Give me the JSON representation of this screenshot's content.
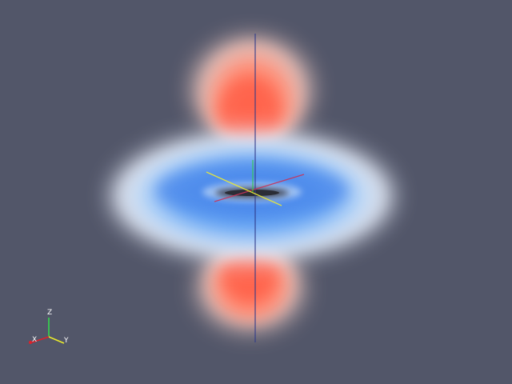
{
  "scene": {
    "background_color": "#525669",
    "lobe_color": "#ff7a62",
    "torus_color": "#5d9dee"
  },
  "orientation_axes": {
    "z_label": "Z",
    "x_label": "X",
    "y_label": "Y",
    "z_color": "#33e24b",
    "x_color": "#e0202a",
    "y_color": "#ecec2a"
  },
  "center_axes": {
    "z_color": "#2f3a8a",
    "x_color": "#c93358",
    "y_color": "#e8e83a"
  }
}
